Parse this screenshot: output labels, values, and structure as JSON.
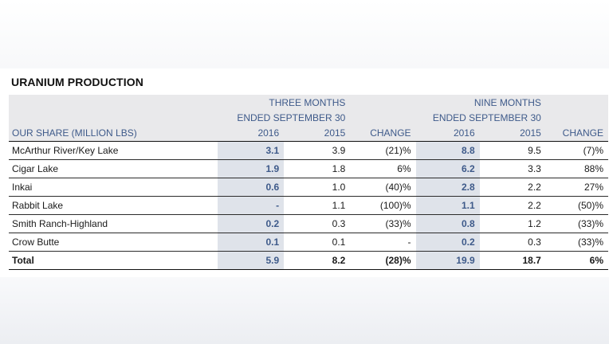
{
  "title": "URANIUM PRODUCTION",
  "header": {
    "three_months_line1": "THREE MONTHS",
    "three_months_line2": "ENDED SEPTEMBER 30",
    "nine_months_line1": "NINE MONTHS",
    "nine_months_line2": "ENDED SEPTEMBER 30",
    "row_label": "OUR SHARE (MILLION LBS)",
    "col_2016a": "2016",
    "col_2015a": "2015",
    "col_change_a": "CHANGE",
    "col_2016b": "2016",
    "col_2015b": "2015",
    "col_change_b": "CHANGE"
  },
  "rows": [
    {
      "name": "McArthur River/Key Lake",
      "q_2016": "3.1",
      "q_2015": "3.9",
      "q_change": "(21)%",
      "n_2016": "8.8",
      "n_2015": "9.5",
      "n_change": "(7)%"
    },
    {
      "name": "Cigar Lake",
      "q_2016": "1.9",
      "q_2015": "1.8",
      "q_change": "6%",
      "n_2016": "6.2",
      "n_2015": "3.3",
      "n_change": "88%"
    },
    {
      "name": "Inkai",
      "q_2016": "0.6",
      "q_2015": "1.0",
      "q_change": "(40)%",
      "n_2016": "2.8",
      "n_2015": "2.2",
      "n_change": "27%"
    },
    {
      "name": "Rabbit Lake",
      "q_2016": "-",
      "q_2015": "1.1",
      "q_change": "(100)%",
      "n_2016": "1.1",
      "n_2015": "2.2",
      "n_change": "(50)%"
    },
    {
      "name": "Smith Ranch-Highland",
      "q_2016": "0.2",
      "q_2015": "0.3",
      "q_change": "(33)%",
      "n_2016": "0.8",
      "n_2015": "1.2",
      "n_change": "(33)%"
    },
    {
      "name": "Crow Butte",
      "q_2016": "0.1",
      "q_2015": "0.1",
      "q_change": "-",
      "n_2016": "0.2",
      "n_2015": "0.3",
      "n_change": "(33)%"
    },
    {
      "name": "Total",
      "q_2016": "5.9",
      "q_2015": "8.2",
      "q_change": "(28)%",
      "n_2016": "19.9",
      "n_2015": "18.7",
      "n_change": "6%"
    }
  ],
  "colors": {
    "header_text": "#3e5a8a",
    "header_bg": "#e9e9eb",
    "highlight_bg": "#dfe3ea"
  }
}
